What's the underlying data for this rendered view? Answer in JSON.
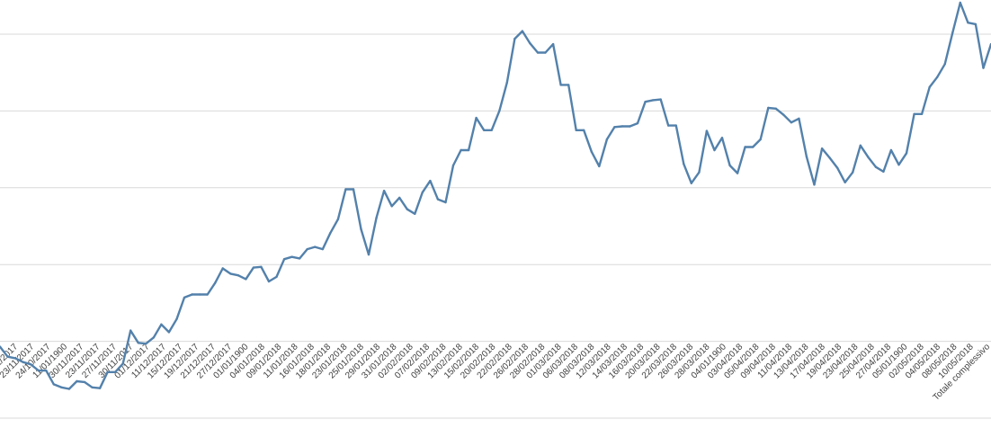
{
  "chart_data": {
    "type": "line",
    "title": "",
    "xlabel": "",
    "ylabel": "",
    "ylim": [
      0,
      5.5
    ],
    "grid": true,
    "legend": "none",
    "colors": {
      "line": "#5381ab",
      "grid": "#d9d9d9",
      "tick_text": "#404040"
    },
    "tick_labels": [
      "20/11/2017",
      "23/11/2017",
      "24/10/2017",
      "11/01/1900",
      "30/11/2017",
      "23/11/2017",
      "27/11/2017",
      "30/11/2017",
      "01/12/2017",
      "11/12/2017",
      "15/12/2017",
      "19/12/2017",
      "21/12/2017",
      "27/12/2017",
      "01/01/1900",
      "04/01/2018",
      "09/01/2018",
      "11/01/2018",
      "16/01/2018",
      "18/01/2018",
      "23/01/2018",
      "25/01/2018",
      "29/01/2018",
      "31/01/2018",
      "02/02/2018",
      "07/02/2018",
      "09/02/2018",
      "13/02/2018",
      "15/02/2018",
      "20/02/2018",
      "22/02/2018",
      "26/02/2018",
      "28/02/2018",
      "01/03/2018",
      "06/03/2018",
      "08/03/2018",
      "12/03/2018",
      "14/03/2018",
      "16/03/2018",
      "20/03/2018",
      "22/03/2018",
      "26/03/2018",
      "28/03/2018",
      "04/01/1900",
      "03/04/2018",
      "05/04/2018",
      "09/04/2018",
      "11/04/2018",
      "13/04/2018",
      "17/04/2018",
      "19/04/2018",
      "23/04/2018",
      "25/04/2018",
      "27/04/2018",
      "05/01/1900",
      "02/05/2018",
      "04/05/2018",
      "08/05/2018",
      "10/05/2018",
      "Totale complessivo"
    ],
    "series": [
      {
        "values": [
          0.93,
          0.8,
          0.78,
          0.73,
          0.7,
          0.62,
          0.62,
          0.44,
          0.4,
          0.38,
          0.48,
          0.47,
          0.4,
          0.39,
          0.6,
          0.6,
          0.71,
          1.14,
          0.98,
          0.97,
          1.05,
          1.22,
          1.12,
          1.29,
          1.57,
          1.61,
          1.61,
          1.61,
          1.76,
          1.95,
          1.88,
          1.86,
          1.81,
          1.96,
          1.97,
          1.78,
          1.84,
          2.07,
          2.1,
          2.08,
          2.2,
          2.23,
          2.2,
          2.41,
          2.59,
          2.98,
          2.98,
          2.46,
          2.13,
          2.61,
          2.96,
          2.76,
          2.87,
          2.72,
          2.66,
          2.94,
          3.09,
          2.85,
          2.81,
          3.29,
          3.49,
          3.49,
          3.91,
          3.75,
          3.75,
          4.0,
          4.37,
          4.94,
          5.04,
          4.88,
          4.76,
          4.76,
          4.87,
          4.34,
          4.34,
          3.75,
          3.75,
          3.47,
          3.28,
          3.63,
          3.79,
          3.8,
          3.8,
          3.84,
          4.12,
          4.14,
          4.15,
          3.81,
          3.81,
          3.31,
          3.06,
          3.2,
          3.74,
          3.49,
          3.65,
          3.29,
          3.19,
          3.53,
          3.53,
          3.63,
          4.04,
          4.03,
          3.95,
          3.85,
          3.9,
          3.4,
          3.04,
          3.51,
          3.39,
          3.26,
          3.07,
          3.2,
          3.55,
          3.4,
          3.27,
          3.21,
          3.49,
          3.3,
          3.45,
          3.96,
          3.96,
          4.31,
          4.44,
          4.61,
          5.02,
          5.41,
          5.15,
          5.13,
          4.56,
          4.87
        ]
      }
    ]
  }
}
